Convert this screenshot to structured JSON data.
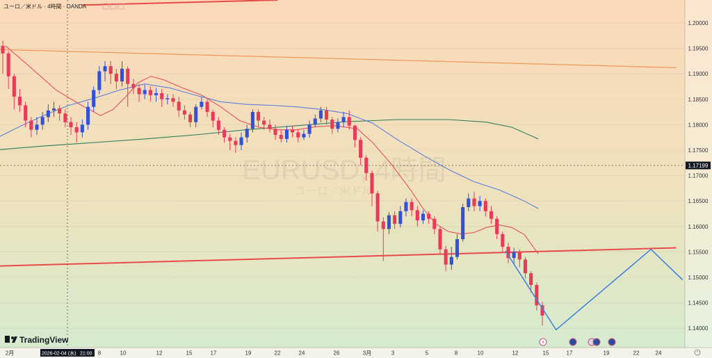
{
  "header": {
    "title": "ユーロ／米ドル · 4時間 · OANDA"
  },
  "watermark": {
    "symbol": "EURUSD, 4時間",
    "name": "ユーロ／米ドル"
  },
  "branding": {
    "logo_text": "TradingView"
  },
  "crosshair": {
    "date_label": "2026-02-04 (水)",
    "time_label": "21:00"
  },
  "colors": {
    "bg_top": "#fbd9b9",
    "bg_bottom": "#d4ecd0",
    "bull": "#3152d8",
    "bear": "#e83a59",
    "ma_fast": "#e8505c",
    "ma_mid": "#5b7fe0",
    "ma_slow": "#2e7d5e",
    "trend_red": "#e84a4a",
    "trend_orange": "#f0955a",
    "projection": "#3a7fe0"
  },
  "chart_data": {
    "type": "candlestick",
    "symbol": "EURUSD",
    "timeframe": "4時間",
    "source": "OANDA",
    "ylim": [
      1.1362,
      1.2045
    ],
    "y_ticks": [
      "1.20000",
      "1.19500",
      "1.19000",
      "1.18500",
      "1.18000",
      "1.17500",
      "1.17000",
      "1.16500",
      "1.16000",
      "1.15500",
      "1.15000",
      "1.14500",
      "1.14000"
    ],
    "current_price": "1.17199",
    "x_ticks": [
      "2月",
      "3",
      "8",
      "10",
      "12",
      "15",
      "17",
      "19",
      "22",
      "24",
      "26",
      "3月",
      "3",
      "5",
      "8",
      "10",
      "12",
      "15",
      "17",
      "19",
      "22",
      "24"
    ],
    "date_range": [
      "2月1",
      "3月24"
    ],
    "ma_fast": [
      [
        1.0,
        1.1955
      ],
      [
        3.0,
        1.1912
      ],
      [
        5.0,
        1.1868
      ],
      [
        7.0,
        1.1838
      ],
      [
        8.5,
        1.1818
      ],
      [
        9.5,
        1.183
      ],
      [
        10.5,
        1.1855
      ],
      [
        11.5,
        1.1883
      ],
      [
        12.5,
        1.1895
      ],
      [
        13.5,
        1.1888
      ],
      [
        15.0,
        1.1872
      ],
      [
        16.5,
        1.1858
      ],
      [
        18.0,
        1.1835
      ],
      [
        19.5,
        1.1808
      ],
      [
        21.0,
        1.1795
      ],
      [
        22.5,
        1.179
      ],
      [
        24.0,
        1.179
      ],
      [
        25.5,
        1.1796
      ],
      [
        27.0,
        1.1798
      ],
      [
        28.8,
        1.1792
      ],
      [
        30.0,
        1.1765
      ],
      [
        31.5,
        1.1722
      ],
      [
        33.0,
        1.1672
      ],
      [
        34.0,
        1.1635
      ],
      [
        35.0,
        1.1605
      ],
      [
        36.0,
        1.159
      ],
      [
        37.0,
        1.1585
      ],
      [
        38.0,
        1.1588
      ],
      [
        39.0,
        1.1598
      ],
      [
        40.0,
        1.1603
      ],
      [
        41.0,
        1.1598
      ],
      [
        42.0,
        1.1584
      ],
      [
        43.1,
        1.1546
      ]
    ],
    "ma_mid": [
      [
        0.0,
        1.177
      ],
      [
        2.0,
        1.1795
      ],
      [
        4.0,
        1.1818
      ],
      [
        6.0,
        1.1838
      ],
      [
        8.0,
        1.1852
      ],
      [
        10.0,
        1.1868
      ],
      [
        12.0,
        1.188
      ],
      [
        14.0,
        1.1872
      ],
      [
        16.0,
        1.1858
      ],
      [
        18.0,
        1.1845
      ],
      [
        20.0,
        1.184
      ],
      [
        22.0,
        1.1838
      ],
      [
        24.0,
        1.1835
      ],
      [
        26.0,
        1.183
      ],
      [
        28.0,
        1.1822
      ],
      [
        30.0,
        1.1803
      ],
      [
        32.0,
        1.177
      ],
      [
        34.0,
        1.174
      ],
      [
        36.0,
        1.1712
      ],
      [
        38.0,
        1.1688
      ],
      [
        40.0,
        1.1672
      ],
      [
        42.0,
        1.165
      ],
      [
        43.1,
        1.1635
      ]
    ],
    "ma_slow": [
      [
        0.0,
        1.175
      ],
      [
        4.0,
        1.1758
      ],
      [
        8.0,
        1.1765
      ],
      [
        12.0,
        1.1772
      ],
      [
        16.0,
        1.178
      ],
      [
        20.0,
        1.179
      ],
      [
        24.0,
        1.1798
      ],
      [
        28.0,
        1.1806
      ],
      [
        32.0,
        1.181
      ],
      [
        36.0,
        1.181
      ],
      [
        39.0,
        1.1805
      ],
      [
        41.0,
        1.1795
      ],
      [
        43.1,
        1.1772
      ]
    ],
    "trendlines": [
      {
        "color": "red",
        "from": [
          0.0,
          1.1522
        ],
        "to": [
          54.0,
          1.1558
        ]
      },
      {
        "color": "orange",
        "from": [
          0.0,
          1.1948
        ],
        "to": [
          54.0,
          1.1912
        ]
      },
      {
        "color": "red",
        "from": [
          7.0,
          1.2035
        ],
        "to": [
          22.5,
          1.2045
        ]
      }
    ],
    "projection": [
      [
        40.5,
        1.1552
      ],
      [
        44.5,
        1.1397
      ],
      [
        52.0,
        1.1555
      ],
      [
        54.5,
        1.1495
      ]
    ],
    "candles": [
      [
        1.1955,
        1.194,
        1.1965,
        1.19
      ],
      [
        1.194,
        1.1895,
        1.1945,
        1.187
      ],
      [
        1.1895,
        1.1855,
        1.19,
        1.183
      ],
      [
        1.1855,
        1.1838,
        1.187,
        1.1825
      ],
      [
        1.1838,
        1.1808,
        1.1845,
        1.1795
      ],
      [
        1.1808,
        1.179,
        1.1815,
        1.1775
      ],
      [
        1.179,
        1.18,
        1.1815,
        1.178
      ],
      [
        1.18,
        1.1815,
        1.1825,
        1.179
      ],
      [
        1.1815,
        1.1828,
        1.184,
        1.1805
      ],
      [
        1.1828,
        1.1832,
        1.1845,
        1.1815
      ],
      [
        1.1832,
        1.1822,
        1.1838,
        1.1808
      ],
      [
        1.1822,
        1.1805,
        1.183,
        1.1795
      ],
      [
        1.1805,
        1.1795,
        1.1815,
        1.178
      ],
      [
        1.1795,
        1.1785,
        1.1805,
        1.1765
      ],
      [
        1.1785,
        1.18,
        1.181,
        1.1775
      ],
      [
        1.18,
        1.1835,
        1.1845,
        1.179
      ],
      [
        1.1835,
        1.1868,
        1.1875,
        1.1825
      ],
      [
        1.1868,
        1.1905,
        1.1915,
        1.186
      ],
      [
        1.1905,
        1.1915,
        1.1925,
        1.1885
      ],
      [
        1.1915,
        1.19,
        1.1925,
        1.188
      ],
      [
        1.19,
        1.1885,
        1.191,
        1.187
      ],
      [
        1.1885,
        1.191,
        1.1925,
        1.1875
      ],
      [
        1.191,
        1.188,
        1.1915,
        1.1835
      ],
      [
        1.188,
        1.1872,
        1.189,
        1.186
      ],
      [
        1.1872,
        1.186,
        1.188,
        1.1845
      ],
      [
        1.186,
        1.1868,
        1.1878,
        1.185
      ],
      [
        1.1868,
        1.1858,
        1.1875,
        1.1845
      ],
      [
        1.1858,
        1.1862,
        1.1872,
        1.1845
      ],
      [
        1.1862,
        1.185,
        1.187,
        1.1835
      ],
      [
        1.185,
        1.1852,
        1.186,
        1.184
      ],
      [
        1.1852,
        1.1845,
        1.186,
        1.1835
      ],
      [
        1.1845,
        1.1828,
        1.1855,
        1.1815
      ],
      [
        1.1828,
        1.182,
        1.1838,
        1.181
      ],
      [
        1.182,
        1.1805,
        1.1825,
        1.1795
      ],
      [
        1.1805,
        1.1835,
        1.184,
        1.1795
      ],
      [
        1.1835,
        1.1845,
        1.1855,
        1.183
      ],
      [
        1.1845,
        1.1825,
        1.185,
        1.1815
      ],
      [
        1.1825,
        1.1808,
        1.183,
        1.1795
      ],
      [
        1.1808,
        1.179,
        1.1815,
        1.178
      ],
      [
        1.179,
        1.1775,
        1.1795,
        1.1765
      ],
      [
        1.1775,
        1.1768,
        1.1782,
        1.175
      ],
      [
        1.1768,
        1.176,
        1.1775,
        1.1745
      ],
      [
        1.176,
        1.1775,
        1.1785,
        1.175
      ],
      [
        1.1775,
        1.1792,
        1.18,
        1.1765
      ],
      [
        1.1792,
        1.1825,
        1.183,
        1.1785
      ],
      [
        1.1825,
        1.1808,
        1.183,
        1.1795
      ],
      [
        1.1808,
        1.18,
        1.1815,
        1.179
      ],
      [
        1.18,
        1.1792,
        1.181,
        1.1785
      ],
      [
        1.1792,
        1.178,
        1.18,
        1.177
      ],
      [
        1.178,
        1.1772,
        1.179,
        1.1765
      ],
      [
        1.1772,
        1.179,
        1.1798,
        1.1765
      ],
      [
        1.179,
        1.1785,
        1.1798,
        1.1775
      ],
      [
        1.1785,
        1.1775,
        1.179,
        1.1765
      ],
      [
        1.1775,
        1.1782,
        1.179,
        1.177
      ],
      [
        1.1782,
        1.18,
        1.1808,
        1.1775
      ],
      [
        1.18,
        1.1812,
        1.182,
        1.1795
      ],
      [
        1.1812,
        1.1828,
        1.1835,
        1.1805
      ],
      [
        1.1828,
        1.181,
        1.1835,
        1.18
      ],
      [
        1.181,
        1.1792,
        1.1815,
        1.1782
      ],
      [
        1.1792,
        1.1805,
        1.1812,
        1.1785
      ],
      [
        1.1805,
        1.1815,
        1.1825,
        1.1795
      ],
      [
        1.1815,
        1.1798,
        1.1828,
        1.179
      ],
      [
        1.1798,
        1.177,
        1.18,
        1.1755
      ],
      [
        1.177,
        1.1735,
        1.1775,
        1.172
      ],
      [
        1.1735,
        1.1705,
        1.174,
        1.169
      ],
      [
        1.1705,
        1.1665,
        1.171,
        1.164
      ],
      [
        1.1665,
        1.161,
        1.167,
        1.159
      ],
      [
        1.161,
        1.1595,
        1.1618,
        1.1532
      ],
      [
        1.1595,
        1.1622,
        1.1628,
        1.1585
      ],
      [
        1.1622,
        1.1605,
        1.163,
        1.1595
      ],
      [
        1.1605,
        1.163,
        1.164,
        1.1598
      ],
      [
        1.163,
        1.1648,
        1.1655,
        1.162
      ],
      [
        1.1648,
        1.1632,
        1.1655,
        1.162
      ],
      [
        1.1632,
        1.1612,
        1.164,
        1.16
      ],
      [
        1.1612,
        1.1625,
        1.1632,
        1.1605
      ],
      [
        1.1625,
        1.1615,
        1.163,
        1.1605
      ],
      [
        1.1615,
        1.1595,
        1.162,
        1.1585
      ],
      [
        1.1595,
        1.1555,
        1.16,
        1.1545
      ],
      [
        1.1555,
        1.1525,
        1.1562,
        1.1512
      ],
      [
        1.1525,
        1.154,
        1.156,
        1.1515
      ],
      [
        1.154,
        1.1575,
        1.1585,
        1.1535
      ],
      [
        1.1575,
        1.1638,
        1.1645,
        1.157
      ],
      [
        1.1638,
        1.1655,
        1.1665,
        1.163
      ],
      [
        1.1655,
        1.164,
        1.1668,
        1.163
      ],
      [
        1.164,
        1.165,
        1.166,
        1.163
      ],
      [
        1.165,
        1.163,
        1.1655,
        1.162
      ],
      [
        1.163,
        1.1615,
        1.164,
        1.1605
      ],
      [
        1.1615,
        1.1585,
        1.162,
        1.1575
      ],
      [
        1.1585,
        1.156,
        1.159,
        1.155
      ],
      [
        1.156,
        1.1538,
        1.1568,
        1.1528
      ],
      [
        1.1538,
        1.155,
        1.1558,
        1.1525
      ],
      [
        1.155,
        1.1535,
        1.1555,
        1.152
      ],
      [
        1.1535,
        1.1508,
        1.154,
        1.1498
      ],
      [
        1.1508,
        1.1485,
        1.1512,
        1.147
      ],
      [
        1.1485,
        1.1445,
        1.149,
        1.1435
      ],
      [
        1.1445,
        1.1425,
        1.1452,
        1.1405
      ]
    ]
  }
}
